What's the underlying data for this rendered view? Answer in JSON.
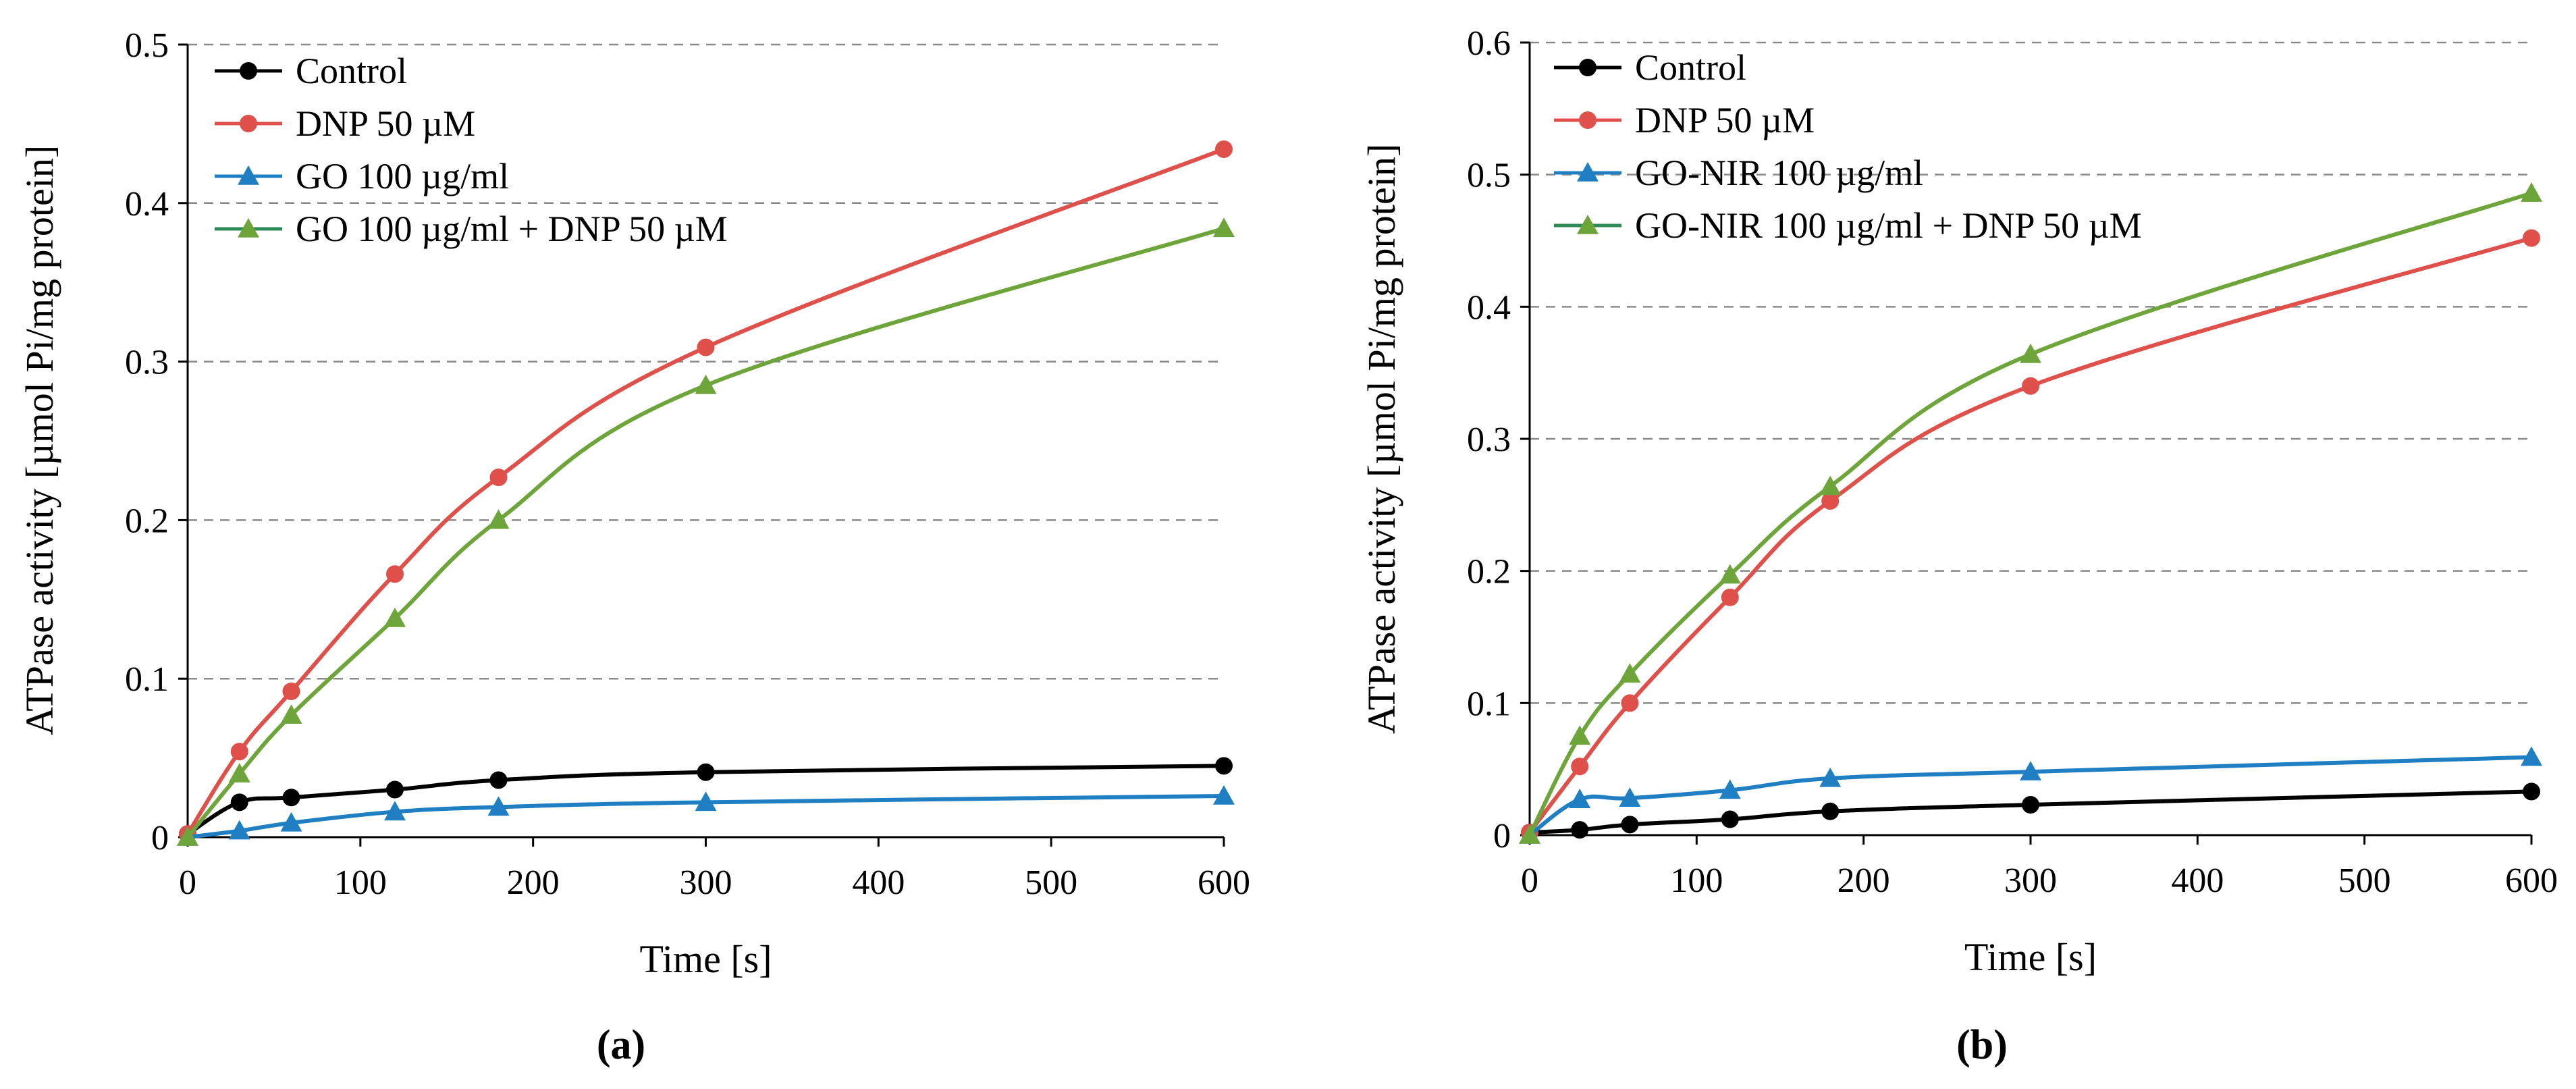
{
  "figure": {
    "colors": {
      "axis": "#000000",
      "gridline": "#8a8a8a",
      "control": "#000000",
      "dnp": "#e0504a",
      "go": "#1f7fc2",
      "go_dnp": "#6ea53a",
      "legend_dnp_line": "#e0504a",
      "legend_go_line": "#1f7fc2",
      "legend_go_dnp_line": "#2e8b57"
    }
  },
  "chart_data": [
    {
      "type": "line",
      "panel_label": "(a)",
      "xlabel": "Time [s]",
      "ylabel": "ATPase activity [µmol Pi/mg protein]",
      "xlim": [
        0,
        600
      ],
      "ylim": [
        0,
        0.5
      ],
      "xticks": [
        0,
        100,
        200,
        300,
        400,
        500,
        600
      ],
      "xtick_labels": [
        "0",
        "100",
        "200",
        "300",
        "400",
        "500",
        "600"
      ],
      "yticks": [
        0,
        0.1,
        0.2,
        0.3,
        0.4,
        0.5
      ],
      "ytick_labels": [
        "0",
        "0.1",
        "0.2",
        "0.3",
        "0.4",
        "0.5"
      ],
      "grid": true,
      "legend_position": "top-left",
      "series": [
        {
          "name": "Control",
          "marker": "circle",
          "color": "#000000",
          "legend_line_color": "#000000",
          "x": [
            0,
            30,
            60,
            120,
            180,
            300,
            600
          ],
          "y": [
            0.002,
            0.022,
            0.025,
            0.03,
            0.036,
            0.041,
            0.045
          ]
        },
        {
          "name": "DNP 50 µM",
          "marker": "circle",
          "color": "#e0504a",
          "legend_line_color": "#e0504a",
          "x": [
            0,
            30,
            60,
            120,
            180,
            300,
            600
          ],
          "y": [
            0.002,
            0.054,
            0.092,
            0.166,
            0.227,
            0.309,
            0.434
          ]
        },
        {
          "name": "GO 100 µg/ml",
          "marker": "triangle",
          "color": "#1f7fc2",
          "legend_line_color": "#1f7fc2",
          "x": [
            0,
            30,
            60,
            120,
            180,
            300,
            600
          ],
          "y": [
            0.0,
            0.004,
            0.009,
            0.016,
            0.019,
            0.022,
            0.026
          ]
        },
        {
          "name": "GO 100 µg/ml + DNP 50 µM",
          "marker": "triangle",
          "color": "#6ea53a",
          "legend_line_color": "#2e8b57",
          "x": [
            0,
            30,
            60,
            120,
            180,
            300,
            600
          ],
          "y": [
            0.0,
            0.04,
            0.077,
            0.138,
            0.2,
            0.285,
            0.384
          ]
        }
      ]
    },
    {
      "type": "line",
      "panel_label": "(b)",
      "xlabel": "Time [s]",
      "ylabel": "ATPase activity [µmol Pi/mg protein]",
      "xlim": [
        0,
        600
      ],
      "ylim": [
        0,
        0.6
      ],
      "xticks": [
        0,
        100,
        200,
        300,
        400,
        500,
        600
      ],
      "xtick_labels": [
        "0",
        "100",
        "200",
        "300",
        "400",
        "500",
        "600"
      ],
      "yticks": [
        0,
        0.1,
        0.2,
        0.3,
        0.4,
        0.5,
        0.6
      ],
      "ytick_labels": [
        "0",
        "0.1",
        "0.2",
        "0.3",
        "0.4",
        "0.5",
        "0.6"
      ],
      "grid": true,
      "legend_position": "top-left",
      "series": [
        {
          "name": "Control",
          "marker": "circle",
          "color": "#000000",
          "legend_line_color": "#000000",
          "x": [
            0,
            30,
            60,
            120,
            180,
            300,
            600
          ],
          "y": [
            0.002,
            0.004,
            0.008,
            0.012,
            0.018,
            0.023,
            0.033
          ]
        },
        {
          "name": "DNP 50 µM",
          "marker": "circle",
          "color": "#e0504a",
          "legend_line_color": "#e0504a",
          "x": [
            0,
            30,
            60,
            120,
            180,
            300,
            600
          ],
          "y": [
            0.002,
            0.052,
            0.1,
            0.18,
            0.253,
            0.34,
            0.452
          ]
        },
        {
          "name": "GO-NIR 100 µg/ml",
          "marker": "triangle",
          "color": "#1f7fc2",
          "legend_line_color": "#1f7fc2",
          "x": [
            0,
            30,
            60,
            120,
            180,
            300,
            600
          ],
          "y": [
            0.0,
            0.027,
            0.028,
            0.034,
            0.043,
            0.048,
            0.059
          ]
        },
        {
          "name": "GO-NIR 100 µg/ml + DNP 50 µM",
          "marker": "triangle",
          "color": "#6ea53a",
          "legend_line_color": "#2e8b57",
          "x": [
            0,
            30,
            60,
            120,
            180,
            300,
            600
          ],
          "y": [
            0.0,
            0.075,
            0.122,
            0.197,
            0.264,
            0.364,
            0.486
          ]
        }
      ]
    }
  ]
}
